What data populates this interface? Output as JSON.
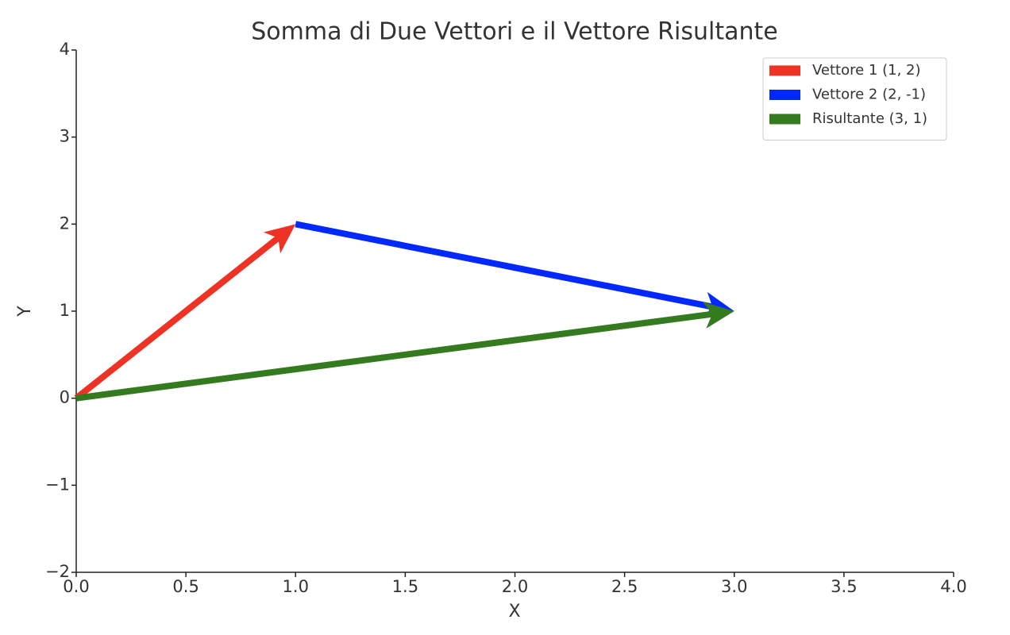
{
  "chart_data": {
    "type": "quiver",
    "title": "Somma di Due Vettori e il Vettore Risultante",
    "xlabel": "X",
    "ylabel": "Y",
    "series": [
      {
        "name": "Vettore 1 (1, 2)",
        "color": "#ee3224",
        "x": [
          0,
          1
        ],
        "values": [
          0,
          2
        ]
      },
      {
        "name": "Vettore 2 (2, -1)",
        "color": "#0028ff",
        "x": [
          1,
          3
        ],
        "values": [
          2,
          1
        ]
      },
      {
        "name": "Risultante (3, 1)",
        "color": "#347a1f",
        "x": [
          0,
          3
        ],
        "values": [
          0,
          1
        ]
      }
    ],
    "xlim": [
      0,
      4
    ],
    "xticks": [
      {
        "value": 0,
        "label": "0.0"
      },
      0.5,
      {
        "value": 1,
        "label": "1.0"
      },
      1.5,
      {
        "value": 2,
        "label": "2.0"
      },
      2.5,
      {
        "value": 3,
        "label": "3.0"
      },
      3.5,
      {
        "value": 4,
        "label": "4.0"
      }
    ],
    "ylim": [
      -2,
      4
    ],
    "yticks": [
      {
        "value": -2,
        "label": "−2"
      },
      {
        "value": -1,
        "label": "−1"
      },
      0,
      1,
      2,
      3,
      4
    ],
    "grid": false,
    "legend": "upper right"
  }
}
